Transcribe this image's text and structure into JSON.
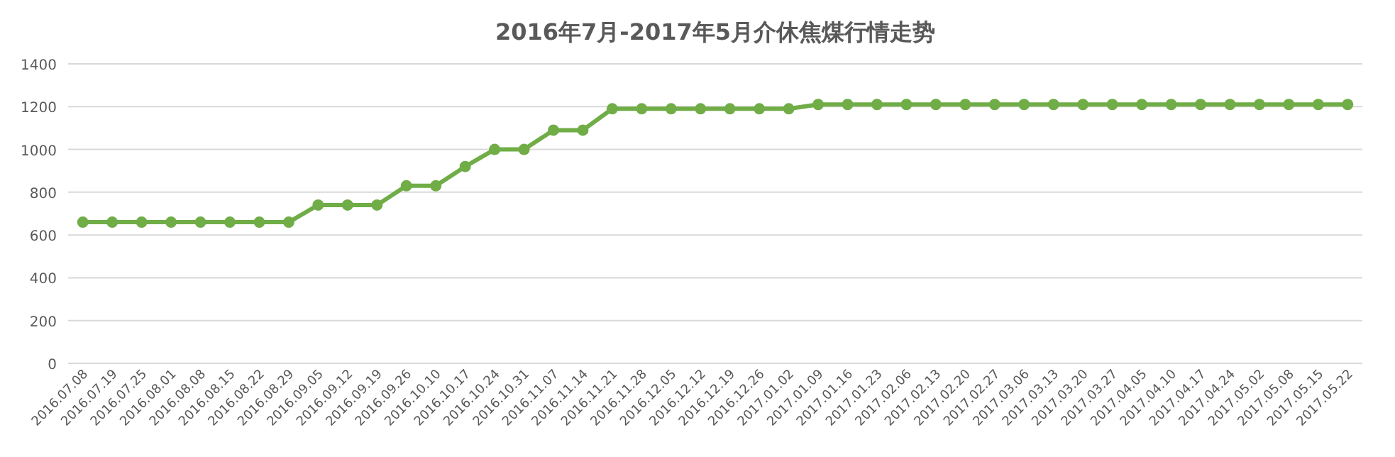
{
  "chart_data": {
    "type": "line",
    "title": "2016年7月-2017年5月介休焦煤行情走势",
    "categories": [
      "2016.07.08",
      "2016.07.19",
      "2016.07.25",
      "2016.08.01",
      "2016.08.08",
      "2016.08.15",
      "2016.08.22",
      "2016.08.29",
      "2016.09.05",
      "2016.09.12",
      "2016.09.19",
      "2016.09.26",
      "2016.10.10",
      "2016.10.17",
      "2016.10.24",
      "2016.10.31",
      "2016.11.07",
      "2016.11.14",
      "2016.11.21",
      "2016.11.28",
      "2016.12.05",
      "2016.12.12",
      "2016.12.19",
      "2016.12.26",
      "2017.01.02",
      "2017.01.09",
      "2017.01.16",
      "2017.01.23",
      "2017.02.06",
      "2017.02.13",
      "2017.02.20",
      "2017.02.27",
      "2017.03.06",
      "2017.03.13",
      "2017.03.20",
      "2017.03.27",
      "2017.04.05",
      "2017.04.10",
      "2017.04.17",
      "2017.04.24",
      "2017.05.02",
      "2017.05.08",
      "2017.05.15",
      "2017.05.22"
    ],
    "values": [
      660,
      660,
      660,
      660,
      660,
      660,
      660,
      660,
      740,
      740,
      740,
      830,
      830,
      920,
      1000,
      1000,
      1090,
      1090,
      1190,
      1190,
      1190,
      1190,
      1190,
      1190,
      1190,
      1210,
      1210,
      1210,
      1210,
      1210,
      1210,
      1210,
      1210,
      1210,
      1210,
      1210,
      1210,
      1210,
      1210,
      1210,
      1210,
      1210,
      1210,
      1210
    ],
    "color": "#70ad47",
    "ylim": [
      0,
      1400
    ],
    "yticks": [
      0,
      200,
      400,
      600,
      800,
      1000,
      1200,
      1400
    ],
    "grid": "y",
    "marker": "circle",
    "line_style": "solid"
  }
}
